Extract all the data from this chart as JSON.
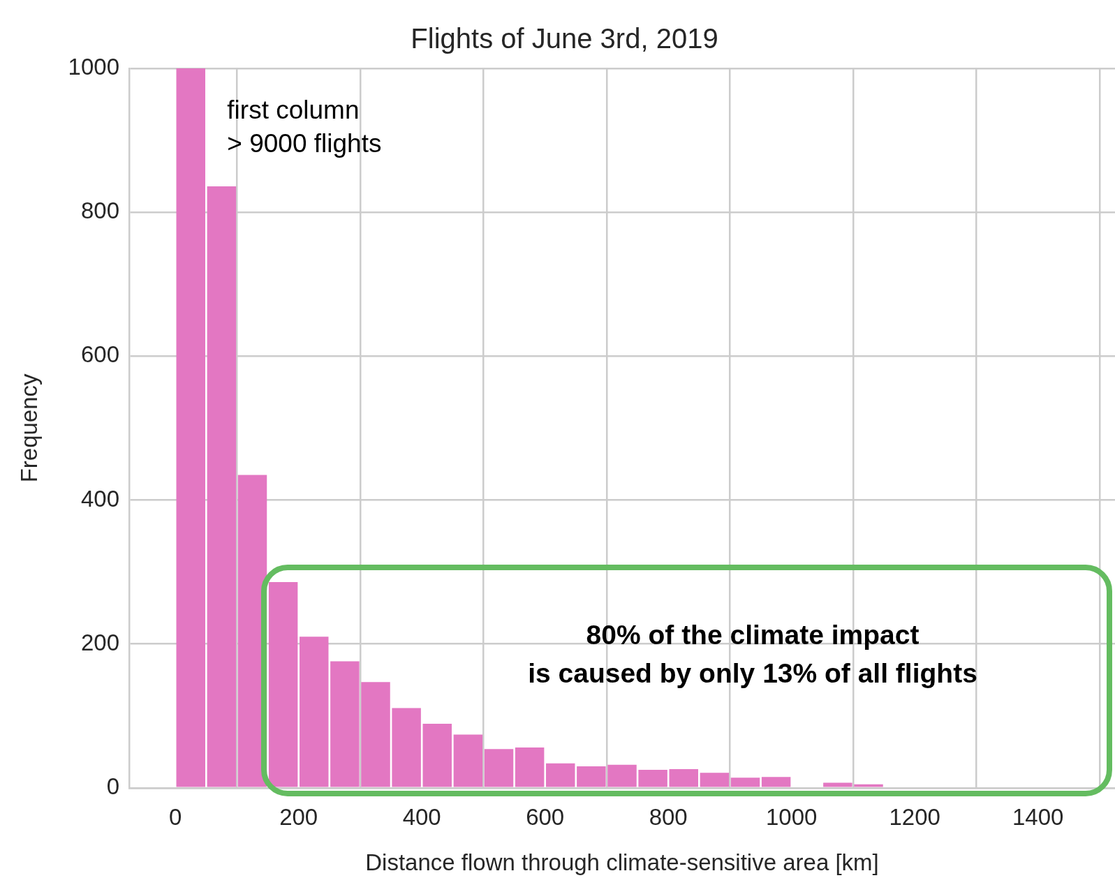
{
  "chart_data": {
    "type": "histogram",
    "title": "Flights of June 3rd, 2019",
    "xlabel": "Distance flown through climate-sensitive area [km]",
    "ylabel": "Frequency",
    "bins": [
      0,
      50,
      100,
      150,
      200,
      250,
      300,
      350,
      400,
      450,
      500,
      550,
      600,
      650,
      700,
      750,
      800,
      850,
      900,
      950,
      1000,
      1050,
      1100,
      1150
    ],
    "values": [
      1000,
      836,
      435,
      286,
      210,
      176,
      147,
      111,
      89,
      74,
      54,
      56,
      34,
      30,
      32,
      25,
      26,
      21,
      14,
      15,
      0,
      7,
      5
    ],
    "color": "#e377c2",
    "xlim": [
      -75,
      1525
    ],
    "xticks": [
      0,
      200,
      400,
      600,
      800,
      1000,
      1200,
      1400
    ],
    "ylim": [
      0,
      1000
    ],
    "yticks": [
      0,
      200,
      400,
      600,
      800,
      1000
    ],
    "grid": true,
    "annotations": [
      "first column\n> 9000 flights",
      "80% of the climate impact\nis caused by only 13% of all flights"
    ]
  }
}
